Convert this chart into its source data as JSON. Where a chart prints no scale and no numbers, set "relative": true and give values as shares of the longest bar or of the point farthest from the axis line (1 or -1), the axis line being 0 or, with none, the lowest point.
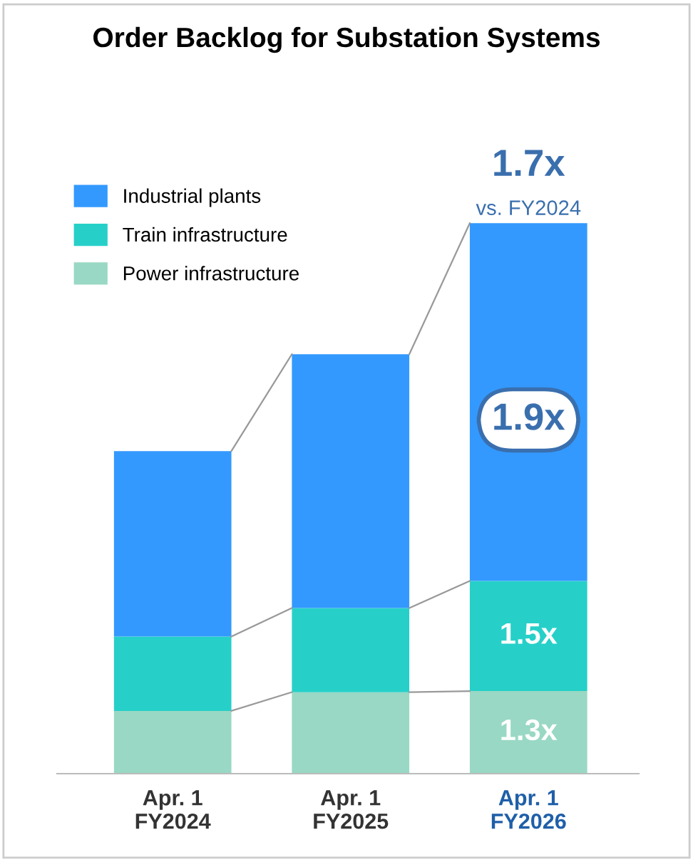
{
  "chart_data": {
    "type": "bar",
    "title": "Order Backlog for Substation Systems",
    "stacked": true,
    "relative": true,
    "legend": "top left",
    "categories": [
      "Apr. 1\nFY2024",
      "Apr. 1\nFY2025",
      "Apr. 1\nFY2026"
    ],
    "series": [
      {
        "name": "Power infrastructure",
        "color": "#99d8c4",
        "values": [
          0.114,
          0.148,
          0.15
        ]
      },
      {
        "name": "Train infrastructure",
        "color": "#26d0c8",
        "values": [
          0.135,
          0.153,
          0.2
        ]
      },
      {
        "name": "Industrial plants",
        "color": "#3399ff",
        "values": [
          0.337,
          0.461,
          0.65
        ]
      }
    ],
    "annotations": [
      "1.7x",
      "vs. FY2024",
      "1.9x",
      "1.5x",
      "1.3x"
    ]
  }
}
